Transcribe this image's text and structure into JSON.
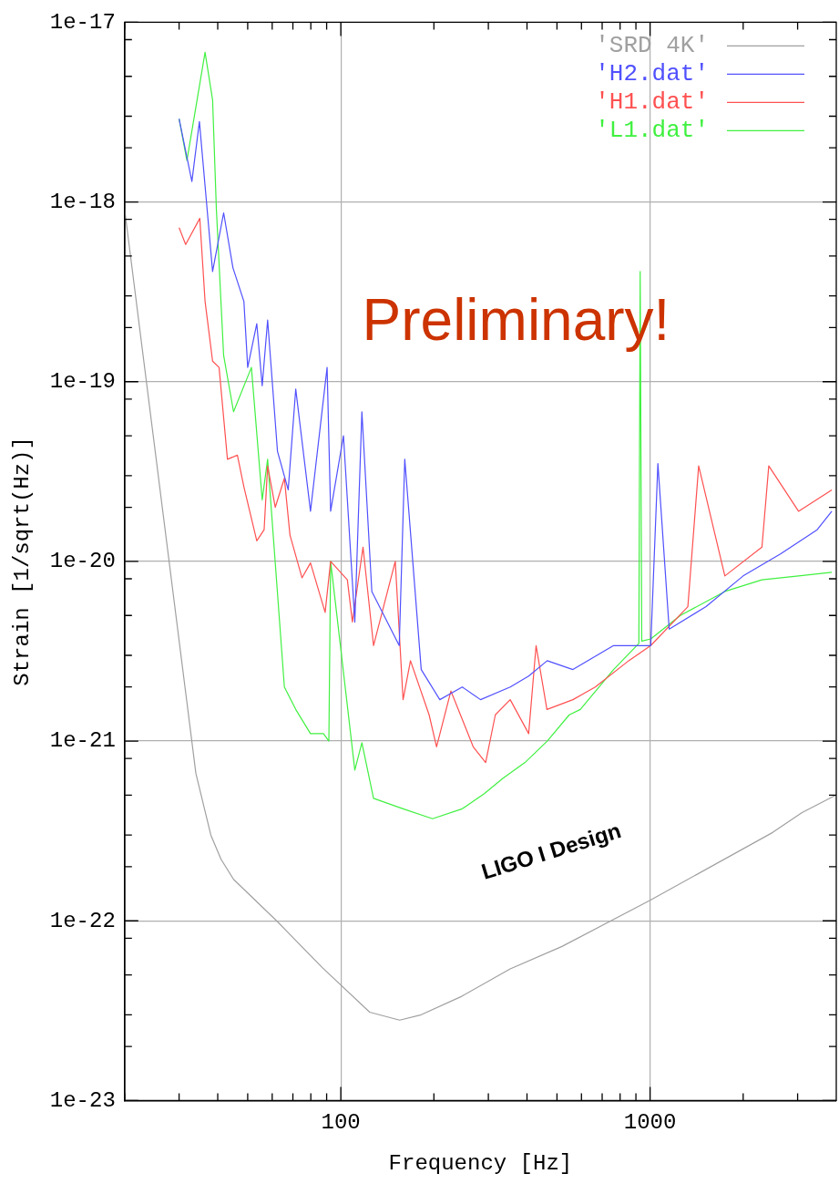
{
  "chart_data": {
    "type": "line",
    "xlabel": "Frequency [Hz]",
    "ylabel": "Strain [1/sqrt(Hz)]",
    "log": "xy",
    "xlim": [
      20,
      4000
    ],
    "ylim": [
      1e-23,
      1e-17
    ],
    "xticks": [
      {
        "value": 20,
        "label": null
      },
      {
        "value": 30,
        "label": null
      },
      {
        "value": 40,
        "label": null
      },
      {
        "value": 50,
        "label": null
      },
      {
        "value": 60,
        "label": null
      },
      {
        "value": 70,
        "label": null
      },
      {
        "value": 80,
        "label": null
      },
      {
        "value": 90,
        "label": null
      },
      100,
      {
        "value": 200,
        "label": null
      },
      {
        "value": 300,
        "label": null
      },
      {
        "value": 400,
        "label": null
      },
      {
        "value": 500,
        "label": null
      },
      {
        "value": 600,
        "label": null
      },
      {
        "value": 700,
        "label": null
      },
      {
        "value": 800,
        "label": null
      },
      {
        "value": 900,
        "label": null
      },
      1000,
      {
        "value": 2000,
        "label": null
      },
      {
        "value": 3000,
        "label": null
      }
    ],
    "yticks": [
      1e-23,
      {
        "value": 2e-23,
        "label": null
      },
      {
        "value": 3e-23,
        "label": null
      },
      {
        "value": 5e-23,
        "label": null
      },
      {
        "value": 8e-23,
        "label": null
      },
      1e-22,
      {
        "value": 2e-22,
        "label": null
      },
      {
        "value": 3e-22,
        "label": null
      },
      {
        "value": 5e-22,
        "label": null
      },
      {
        "value": 8e-22,
        "label": null
      },
      1e-21,
      {
        "value": 2e-21,
        "label": null
      },
      {
        "value": 3e-21,
        "label": null
      },
      {
        "value": 5e-21,
        "label": null
      },
      {
        "value": 8e-21,
        "label": null
      },
      1e-20,
      {
        "value": 2e-20,
        "label": null
      },
      {
        "value": 3e-20,
        "label": null
      },
      {
        "value": 5e-20,
        "label": null
      },
      {
        "value": 8e-20,
        "label": null
      },
      1e-19,
      {
        "value": 2e-19,
        "label": null
      },
      {
        "value": 3e-19,
        "label": null
      },
      {
        "value": 5e-19,
        "label": null
      },
      {
        "value": 8e-19,
        "label": null
      },
      1e-18,
      {
        "value": 2e-18,
        "label": null
      },
      {
        "value": 3e-18,
        "label": null
      },
      {
        "value": 5e-18,
        "label": null
      },
      {
        "value": 8e-18,
        "label": null
      },
      1e-17
    ],
    "grid": true,
    "legend": "top right",
    "marker": "none",
    "line_style": "solid",
    "annotations": [
      "Preliminary!",
      "LIGO I Design"
    ],
    "series": [
      {
        "name": "'SRD 4K'",
        "color": "#a0a0a0",
        "x": [
          20,
          34,
          38,
          41,
          45,
          62,
          87,
          124,
          155,
          182,
          246,
          353,
          519,
          1000,
          2490,
          3100,
          3980
        ],
        "values": [
          9.1e-19,
          6.6e-22,
          3e-22,
          2.2e-22,
          1.7e-22,
          1e-22,
          5.5e-23,
          3.1e-23,
          2.8e-23,
          3e-23,
          3.8e-23,
          5.4e-23,
          7.2e-23,
          1.3e-22,
          3.1e-22,
          4e-22,
          5e-22
        ]
      },
      {
        "name": "'H2.dat'",
        "color": "#5050ff",
        "x": [
          30,
          33,
          34.9,
          38.5,
          41.8,
          44.8,
          48.6,
          50,
          53.5,
          55.7,
          58,
          62.4,
          67.6,
          71.5,
          79.8,
          90.3,
          92.7,
          102,
          111,
          117,
          126,
          154.5,
          161,
          182,
          209,
          247,
          283,
          353,
          405,
          465,
          563,
          762,
          1005,
          1060,
          1153,
          1517,
          2000,
          2640,
          3470,
          3870
        ],
        "values": [
          2.9e-18,
          1.3e-18,
          2.8e-18,
          4.1e-19,
          8.7e-19,
          4.3e-19,
          2.8e-19,
          1.2e-19,
          2.1e-19,
          9.5e-20,
          2.2e-19,
          4.1e-20,
          2.5e-20,
          9.1e-20,
          1.9e-20,
          1.2e-19,
          1.9e-20,
          5e-20,
          4.6e-21,
          6.8e-20,
          6.8e-21,
          3.4e-21,
          3.7e-20,
          2.5e-21,
          1.7e-21,
          2e-21,
          1.7e-21,
          2e-21,
          2.3e-21,
          2.8e-21,
          2.5e-21,
          3.4e-21,
          3.4e-21,
          3.5e-20,
          4.2e-21,
          5.6e-21,
          8.3e-21,
          1.1e-20,
          1.5e-20,
          1.9e-20
        ]
      },
      {
        "name": "'H1.dat'",
        "color": "#ff5050",
        "x": [
          30,
          31.5,
          35,
          36.4,
          38.5,
          40.4,
          43,
          46.3,
          48.6,
          53.5,
          56.5,
          58,
          61.4,
          65.7,
          68.5,
          74.9,
          79.8,
          89,
          92.7,
          105,
          109,
          118,
          127.6,
          150,
          159,
          168,
          193,
          204,
          227,
          268,
          294,
          316,
          353,
          405,
          428,
          464,
          563,
          665,
          853,
          1005,
          1325,
          1436,
          1745,
          2300,
          2420,
          3020,
          3870
        ],
        "values": [
          7.2e-19,
          5.8e-19,
          8.1e-19,
          2.8e-19,
          1.3e-19,
          1.2e-19,
          3.7e-20,
          3.9e-20,
          2.6e-20,
          1.3e-20,
          1.5e-20,
          3.4e-20,
          2e-20,
          2.9e-20,
          1.4e-20,
          8.1e-21,
          9.8e-21,
          5.2e-21,
          1e-20,
          7.9e-21,
          4.6e-21,
          1.2e-20,
          3.4e-21,
          1e-20,
          1.7e-21,
          2.8e-21,
          1.4e-21,
          9.3e-22,
          1.9e-21,
          9.3e-22,
          7.6e-22,
          1.4e-21,
          1.7e-21,
          1.1e-21,
          3.4e-21,
          1.5e-21,
          1.7e-21,
          2e-21,
          2.8e-21,
          3.4e-21,
          5.6e-21,
          3.4e-20,
          8.3e-21,
          1.2e-20,
          3.4e-20,
          1.9e-20,
          2.5e-20
        ]
      },
      {
        "name": "'L1.dat'",
        "color": "#40f040",
        "x": [
          30,
          31.8,
          36.4,
          38.5,
          39.6,
          41.8,
          45,
          51.4,
          55.7,
          58,
          65.7,
          71.5,
          79.8,
          87.9,
          91.5,
          92.7,
          111,
          117,
          127.6,
          159,
          198,
          247,
          291,
          334,
          394,
          465,
          548,
          595,
          762,
          920,
          929,
          940,
          1005,
          1253,
          1745,
          2300,
          3020,
          3870
        ],
        "values": [
          2.9e-18,
          1.7e-18,
          6.8e-18,
          3.7e-18,
          9.1e-19,
          1.4e-19,
          6.8e-20,
          1.2e-19,
          2.2e-20,
          3.7e-20,
          2e-21,
          1.5e-21,
          1.1e-21,
          1.1e-21,
          1e-21,
          1e-20,
          6.9e-22,
          9.8e-22,
          4.8e-22,
          4.2e-22,
          3.7e-22,
          4.2e-22,
          5.1e-22,
          6.2e-22,
          7.6e-22,
          1e-21,
          1.4e-21,
          1.5e-21,
          2.5e-21,
          3.5e-21,
          4.1e-19,
          3.6e-21,
          3.7e-21,
          5e-21,
          6.8e-21,
          7.9e-21,
          8.3e-21,
          8.7e-21
        ]
      }
    ]
  }
}
